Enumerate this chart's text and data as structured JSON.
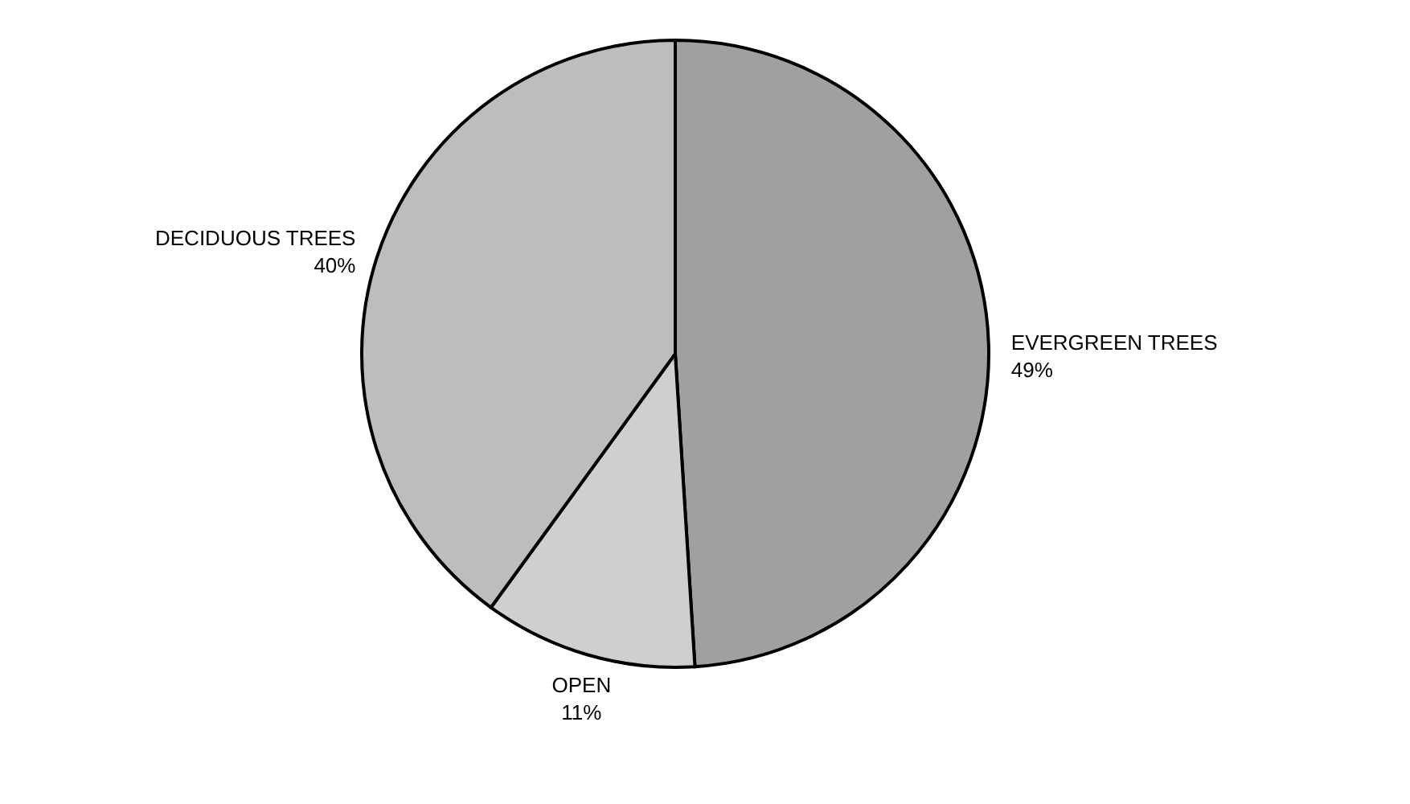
{
  "chart_data": {
    "type": "pie",
    "categories": [
      "EVERGREEN TREES",
      "OPEN",
      "DECIDUOUS TREES"
    ],
    "values": [
      49,
      11,
      40
    ],
    "value_labels": [
      "49%",
      "11%",
      "40%"
    ],
    "colors": [
      "#a0a0a0",
      "#cfcfcf",
      "#bdbdbd"
    ],
    "legend": false
  }
}
